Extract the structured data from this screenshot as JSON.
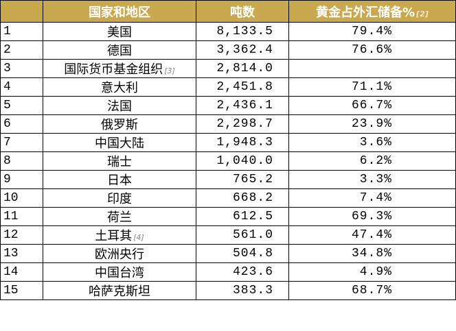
{
  "table": {
    "header": [
      "国家和地区",
      "吨数",
      "黄金占外汇储备%"
    ],
    "header_note": "[2]",
    "rows": [
      {
        "rank": 1,
        "name": "美国",
        "tons": "8,133.5",
        "share": "79.4%"
      },
      {
        "rank": 2,
        "name": "德国",
        "tons": "3,362.4",
        "share": "76.6%"
      },
      {
        "rank": 3,
        "name": "国际货币基金组织",
        "note": "[3]",
        "tons": "2,814.0"
      },
      {
        "rank": 4,
        "name": "意大利",
        "tons": "2,451.8",
        "share": "71.1%"
      },
      {
        "rank": 5,
        "name": "法国",
        "tons": "2,436.1",
        "share": "66.7%"
      },
      {
        "rank": 6,
        "name": "俄罗斯",
        "tons": "2,298.7",
        "share": "23.9%"
      },
      {
        "rank": 7,
        "name": "中国大陆",
        "tons": "1,948.3",
        "share": "3.6%"
      },
      {
        "rank": 8,
        "name": "瑞士",
        "tons": "1,040.0",
        "share": "6.2%"
      },
      {
        "rank": 9,
        "name": "日本",
        "tons": "765.2",
        "share": "3.3%"
      },
      {
        "rank": 10,
        "name": "印度",
        "tons": "668.2",
        "share": "7.4%"
      },
      {
        "rank": 11,
        "name": "荷兰",
        "tons": "612.5",
        "share": "69.3%"
      },
      {
        "rank": 12,
        "name": "土耳其",
        "note": "[4]",
        "tons": "561.0",
        "share": "47.4%"
      },
      {
        "rank": 13,
        "name": "欧洲央行",
        "tons": "504.8",
        "share": "34.8%"
      },
      {
        "rank": 14,
        "name": "中国台湾",
        "tons": "423.6",
        "share": "4.9%"
      },
      {
        "rank": 15,
        "name": "哈萨克斯坦",
        "tons": "383.3",
        "share": "68.7%"
      }
    ]
  }
}
